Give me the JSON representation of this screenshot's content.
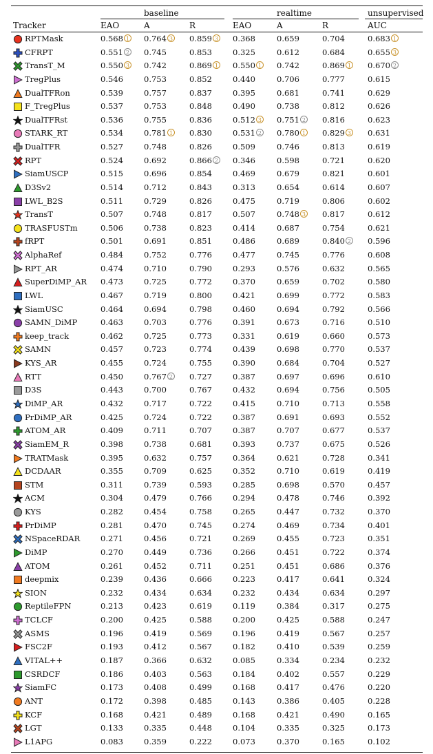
{
  "groups": {
    "baseline": "baseline",
    "realtime": "realtime",
    "unsupervised": "unsupervised"
  },
  "headers": {
    "tracker": "Tracker",
    "b_eao": "EAO",
    "b_a": "A",
    "b_r": "R",
    "r_eao": "EAO",
    "r_a": "A",
    "r_r": "R",
    "u_auc": "AUC"
  },
  "rank_glyphs": {
    "1": "1",
    "2": "2",
    "3": "3"
  },
  "rows": [
    {
      "name": "RPTMask",
      "marker": "circle",
      "color": "#e8321e",
      "v": [
        "0.568",
        "0.764",
        "0.859",
        "0.368",
        "0.659",
        "0.704",
        "0.683"
      ],
      "rk": [
        1,
        3,
        3,
        0,
        0,
        0,
        1
      ]
    },
    {
      "name": "CFRPT",
      "marker": "cross",
      "color": "#2b4fbf",
      "v": [
        "0.551",
        "0.745",
        "0.853",
        "0.325",
        "0.612",
        "0.684",
        "0.655"
      ],
      "rk": [
        2,
        0,
        0,
        0,
        0,
        0,
        3
      ]
    },
    {
      "name": "TransT_M",
      "marker": "xcross",
      "color": "#2e9a2e",
      "v": [
        "0.550",
        "0.742",
        "0.869",
        "0.550",
        "0.742",
        "0.869",
        "0.670"
      ],
      "rk": [
        3,
        0,
        1,
        1,
        0,
        1,
        2
      ]
    },
    {
      "name": "TregPlus",
      "marker": "tri-right",
      "color": "#cf6fd2",
      "v": [
        "0.546",
        "0.753",
        "0.852",
        "0.440",
        "0.706",
        "0.777",
        "0.615"
      ],
      "rk": [
        0,
        0,
        0,
        0,
        0,
        0,
        0
      ]
    },
    {
      "name": "DualTFRon",
      "marker": "tri-up",
      "color": "#f07a20",
      "v": [
        "0.539",
        "0.757",
        "0.837",
        "0.395",
        "0.681",
        "0.741",
        "0.629"
      ],
      "rk": [
        0,
        0,
        0,
        0,
        0,
        0,
        0
      ]
    },
    {
      "name": "F_TregPlus",
      "marker": "square",
      "color": "#f5e21c",
      "v": [
        "0.537",
        "0.753",
        "0.848",
        "0.490",
        "0.738",
        "0.812",
        "0.626"
      ],
      "rk": [
        0,
        0,
        0,
        0,
        0,
        0,
        0
      ]
    },
    {
      "name": "DualTFRst",
      "marker": "star",
      "color": "#111111",
      "v": [
        "0.536",
        "0.755",
        "0.836",
        "0.512",
        "0.751",
        "0.816",
        "0.623"
      ],
      "rk": [
        0,
        0,
        0,
        3,
        2,
        0,
        0
      ]
    },
    {
      "name": "STARK_RT",
      "marker": "circle",
      "color": "#e87ab8",
      "v": [
        "0.534",
        "0.781",
        "0.830",
        "0.531",
        "0.780",
        "0.829",
        "0.631"
      ],
      "rk": [
        0,
        1,
        0,
        2,
        1,
        3,
        0
      ]
    },
    {
      "name": "DualTFR",
      "marker": "cross",
      "color": "#9a9a9a",
      "v": [
        "0.527",
        "0.748",
        "0.826",
        "0.509",
        "0.746",
        "0.813",
        "0.619"
      ],
      "rk": [
        0,
        0,
        0,
        0,
        0,
        0,
        0
      ]
    },
    {
      "name": "RPT",
      "marker": "xcross",
      "color": "#d61f1f",
      "v": [
        "0.524",
        "0.692",
        "0.866",
        "0.346",
        "0.598",
        "0.721",
        "0.620"
      ],
      "rk": [
        0,
        0,
        2,
        0,
        0,
        0,
        0
      ]
    },
    {
      "name": "SiamUSCP",
      "marker": "tri-right",
      "color": "#2f6fc0",
      "v": [
        "0.515",
        "0.696",
        "0.854",
        "0.469",
        "0.679",
        "0.821",
        "0.601"
      ],
      "rk": [
        0,
        0,
        0,
        0,
        0,
        0,
        0
      ]
    },
    {
      "name": "D3Sv2",
      "marker": "tri-up",
      "color": "#2e9a2e",
      "v": [
        "0.514",
        "0.712",
        "0.843",
        "0.313",
        "0.654",
        "0.614",
        "0.607"
      ],
      "rk": [
        0,
        0,
        0,
        0,
        0,
        0,
        0
      ]
    },
    {
      "name": "LWL_B2S",
      "marker": "square",
      "color": "#8a3fa8",
      "v": [
        "0.511",
        "0.729",
        "0.826",
        "0.475",
        "0.719",
        "0.806",
        "0.602"
      ],
      "rk": [
        0,
        0,
        0,
        0,
        0,
        0,
        0
      ]
    },
    {
      "name": "TransT",
      "marker": "star",
      "color": "#e8321e",
      "v": [
        "0.507",
        "0.748",
        "0.817",
        "0.507",
        "0.748",
        "0.817",
        "0.612"
      ],
      "rk": [
        0,
        0,
        0,
        0,
        3,
        0,
        0
      ]
    },
    {
      "name": "TRASFUSTm",
      "marker": "circle",
      "color": "#f5e21c",
      "v": [
        "0.506",
        "0.738",
        "0.823",
        "0.414",
        "0.687",
        "0.754",
        "0.621"
      ],
      "rk": [
        0,
        0,
        0,
        0,
        0,
        0,
        0
      ]
    },
    {
      "name": "fRPT",
      "marker": "cross",
      "color": "#b5451f",
      "v": [
        "0.501",
        "0.691",
        "0.851",
        "0.486",
        "0.689",
        "0.840",
        "0.596"
      ],
      "rk": [
        0,
        0,
        0,
        0,
        0,
        2,
        0
      ]
    },
    {
      "name": "AlphaRef",
      "marker": "xcross",
      "color": "#cf6fd2",
      "v": [
        "0.484",
        "0.752",
        "0.776",
        "0.477",
        "0.745",
        "0.776",
        "0.608"
      ],
      "rk": [
        0,
        0,
        0,
        0,
        0,
        0,
        0
      ]
    },
    {
      "name": "RPT_AR",
      "marker": "tri-right",
      "color": "#9a9a9a",
      "v": [
        "0.474",
        "0.710",
        "0.790",
        "0.293",
        "0.576",
        "0.632",
        "0.565"
      ],
      "rk": [
        0,
        0,
        0,
        0,
        0,
        0,
        0
      ]
    },
    {
      "name": "SuperDiMP_AR",
      "marker": "tri-up",
      "color": "#d61f1f",
      "v": [
        "0.473",
        "0.725",
        "0.772",
        "0.370",
        "0.659",
        "0.702",
        "0.580"
      ],
      "rk": [
        0,
        0,
        0,
        0,
        0,
        0,
        0
      ]
    },
    {
      "name": "LWL",
      "marker": "square",
      "color": "#2f6fc0",
      "v": [
        "0.467",
        "0.719",
        "0.800",
        "0.421",
        "0.699",
        "0.772",
        "0.583"
      ],
      "rk": [
        0,
        0,
        0,
        0,
        0,
        0,
        0
      ]
    },
    {
      "name": "SiamUSC",
      "marker": "star",
      "color": "#111111",
      "v": [
        "0.464",
        "0.694",
        "0.798",
        "0.460",
        "0.694",
        "0.792",
        "0.566"
      ],
      "rk": [
        0,
        0,
        0,
        0,
        0,
        0,
        0
      ]
    },
    {
      "name": "SAMN_DiMP",
      "marker": "circle",
      "color": "#8a3fa8",
      "v": [
        "0.463",
        "0.703",
        "0.776",
        "0.391",
        "0.673",
        "0.716",
        "0.510"
      ],
      "rk": [
        0,
        0,
        0,
        0,
        0,
        0,
        0
      ]
    },
    {
      "name": "keep_track",
      "marker": "cross",
      "color": "#f07a20",
      "v": [
        "0.462",
        "0.725",
        "0.773",
        "0.331",
        "0.619",
        "0.660",
        "0.573"
      ],
      "rk": [
        0,
        0,
        0,
        0,
        0,
        0,
        0
      ]
    },
    {
      "name": "SAMN",
      "marker": "xcross",
      "color": "#f5e21c",
      "v": [
        "0.457",
        "0.723",
        "0.774",
        "0.439",
        "0.698",
        "0.770",
        "0.537"
      ],
      "rk": [
        0,
        0,
        0,
        0,
        0,
        0,
        0
      ]
    },
    {
      "name": "KYS_AR",
      "marker": "tri-right",
      "color": "#8a3a1f",
      "v": [
        "0.455",
        "0.724",
        "0.755",
        "0.390",
        "0.684",
        "0.704",
        "0.527"
      ],
      "rk": [
        0,
        0,
        0,
        0,
        0,
        0,
        0
      ]
    },
    {
      "name": "RTT",
      "marker": "tri-up",
      "color": "#e87ab8",
      "v": [
        "0.450",
        "0.767",
        "0.727",
        "0.387",
        "0.697",
        "0.696",
        "0.610"
      ],
      "rk": [
        0,
        2,
        0,
        0,
        0,
        0,
        0
      ]
    },
    {
      "name": "D3S",
      "marker": "square",
      "color": "#9a9a9a",
      "v": [
        "0.443",
        "0.700",
        "0.767",
        "0.432",
        "0.694",
        "0.756",
        "0.505"
      ],
      "rk": [
        0,
        0,
        0,
        0,
        0,
        0,
        0
      ]
    },
    {
      "name": "DiMP_AR",
      "marker": "star",
      "color": "#2f6fc0",
      "v": [
        "0.432",
        "0.717",
        "0.722",
        "0.415",
        "0.710",
        "0.713",
        "0.558"
      ],
      "rk": [
        0,
        0,
        0,
        0,
        0,
        0,
        0
      ]
    },
    {
      "name": "PrDiMP_AR",
      "marker": "circle",
      "color": "#2f6fc0",
      "v": [
        "0.425",
        "0.724",
        "0.722",
        "0.387",
        "0.691",
        "0.693",
        "0.552"
      ],
      "rk": [
        0,
        0,
        0,
        0,
        0,
        0,
        0
      ]
    },
    {
      "name": "ATOM_AR",
      "marker": "cross",
      "color": "#2e9a2e",
      "v": [
        "0.409",
        "0.711",
        "0.707",
        "0.387",
        "0.707",
        "0.677",
        "0.537"
      ],
      "rk": [
        0,
        0,
        0,
        0,
        0,
        0,
        0
      ]
    },
    {
      "name": "SiamEM_R",
      "marker": "xcross",
      "color": "#8a3fa8",
      "v": [
        "0.398",
        "0.738",
        "0.681",
        "0.393",
        "0.737",
        "0.675",
        "0.526"
      ],
      "rk": [
        0,
        0,
        0,
        0,
        0,
        0,
        0
      ]
    },
    {
      "name": "TRATMask",
      "marker": "tri-right",
      "color": "#f07a20",
      "v": [
        "0.395",
        "0.632",
        "0.757",
        "0.364",
        "0.621",
        "0.728",
        "0.341"
      ],
      "rk": [
        0,
        0,
        0,
        0,
        0,
        0,
        0
      ]
    },
    {
      "name": "DCDAAR",
      "marker": "tri-up",
      "color": "#f5e21c",
      "v": [
        "0.355",
        "0.709",
        "0.625",
        "0.352",
        "0.710",
        "0.619",
        "0.419"
      ],
      "rk": [
        0,
        0,
        0,
        0,
        0,
        0,
        0
      ]
    },
    {
      "name": "STM",
      "marker": "square",
      "color": "#b5451f",
      "v": [
        "0.311",
        "0.739",
        "0.593",
        "0.285",
        "0.698",
        "0.570",
        "0.457"
      ],
      "rk": [
        0,
        0,
        0,
        0,
        0,
        0,
        0
      ]
    },
    {
      "name": "ACM",
      "marker": "star",
      "color": "#111111",
      "v": [
        "0.304",
        "0.479",
        "0.766",
        "0.294",
        "0.478",
        "0.746",
        "0.392"
      ],
      "rk": [
        0,
        0,
        0,
        0,
        0,
        0,
        0
      ]
    },
    {
      "name": "KYS",
      "marker": "circle",
      "color": "#9a9a9a",
      "v": [
        "0.282",
        "0.454",
        "0.758",
        "0.265",
        "0.447",
        "0.732",
        "0.370"
      ],
      "rk": [
        0,
        0,
        0,
        0,
        0,
        0,
        0
      ]
    },
    {
      "name": "PrDiMP",
      "marker": "cross",
      "color": "#d61f1f",
      "v": [
        "0.281",
        "0.470",
        "0.745",
        "0.274",
        "0.469",
        "0.734",
        "0.401"
      ],
      "rk": [
        0,
        0,
        0,
        0,
        0,
        0,
        0
      ]
    },
    {
      "name": "NSpaceRDAR",
      "marker": "xcross",
      "color": "#2f6fc0",
      "v": [
        "0.271",
        "0.456",
        "0.721",
        "0.269",
        "0.455",
        "0.723",
        "0.351"
      ],
      "rk": [
        0,
        0,
        0,
        0,
        0,
        0,
        0
      ]
    },
    {
      "name": "DiMP",
      "marker": "tri-right",
      "color": "#2e9a2e",
      "v": [
        "0.270",
        "0.449",
        "0.736",
        "0.266",
        "0.451",
        "0.722",
        "0.374"
      ],
      "rk": [
        0,
        0,
        0,
        0,
        0,
        0,
        0
      ]
    },
    {
      "name": "ATOM",
      "marker": "tri-up",
      "color": "#8a3fa8",
      "v": [
        "0.261",
        "0.452",
        "0.711",
        "0.251",
        "0.451",
        "0.686",
        "0.376"
      ],
      "rk": [
        0,
        0,
        0,
        0,
        0,
        0,
        0
      ]
    },
    {
      "name": "deepmix",
      "marker": "square",
      "color": "#f07a20",
      "v": [
        "0.239",
        "0.436",
        "0.666",
        "0.223",
        "0.417",
        "0.641",
        "0.324"
      ],
      "rk": [
        0,
        0,
        0,
        0,
        0,
        0,
        0
      ]
    },
    {
      "name": "SION",
      "marker": "star",
      "color": "#f5e21c",
      "v": [
        "0.232",
        "0.434",
        "0.634",
        "0.232",
        "0.434",
        "0.634",
        "0.297"
      ],
      "rk": [
        0,
        0,
        0,
        0,
        0,
        0,
        0
      ]
    },
    {
      "name": "ReptileFPN",
      "marker": "circle",
      "color": "#2e9a2e",
      "v": [
        "0.213",
        "0.423",
        "0.619",
        "0.119",
        "0.384",
        "0.317",
        "0.275"
      ],
      "rk": [
        0,
        0,
        0,
        0,
        0,
        0,
        0
      ]
    },
    {
      "name": "TCLCF",
      "marker": "cross",
      "color": "#cf6fd2",
      "v": [
        "0.200",
        "0.425",
        "0.588",
        "0.200",
        "0.425",
        "0.588",
        "0.247"
      ],
      "rk": [
        0,
        0,
        0,
        0,
        0,
        0,
        0
      ]
    },
    {
      "name": "ASMS",
      "marker": "xcross",
      "color": "#9a9a9a",
      "v": [
        "0.196",
        "0.419",
        "0.569",
        "0.196",
        "0.419",
        "0.567",
        "0.257"
      ],
      "rk": [
        0,
        0,
        0,
        0,
        0,
        0,
        0
      ]
    },
    {
      "name": "FSC2F",
      "marker": "tri-right",
      "color": "#d61f1f",
      "v": [
        "0.193",
        "0.412",
        "0.567",
        "0.182",
        "0.410",
        "0.539",
        "0.259"
      ],
      "rk": [
        0,
        0,
        0,
        0,
        0,
        0,
        0
      ]
    },
    {
      "name": "VITAL++",
      "marker": "tri-up",
      "color": "#2f6fc0",
      "v": [
        "0.187",
        "0.366",
        "0.632",
        "0.085",
        "0.334",
        "0.234",
        "0.232"
      ],
      "rk": [
        0,
        0,
        0,
        0,
        0,
        0,
        0
      ]
    },
    {
      "name": "CSRDCF",
      "marker": "square",
      "color": "#2e9a2e",
      "v": [
        "0.186",
        "0.403",
        "0.563",
        "0.184",
        "0.402",
        "0.557",
        "0.229"
      ],
      "rk": [
        0,
        0,
        0,
        0,
        0,
        0,
        0
      ]
    },
    {
      "name": "SiamFC",
      "marker": "star",
      "color": "#8a3fa8",
      "v": [
        "0.173",
        "0.408",
        "0.499",
        "0.168",
        "0.417",
        "0.476",
        "0.220"
      ],
      "rk": [
        0,
        0,
        0,
        0,
        0,
        0,
        0
      ]
    },
    {
      "name": "ANT",
      "marker": "circle",
      "color": "#f07a20",
      "v": [
        "0.172",
        "0.398",
        "0.485",
        "0.143",
        "0.386",
        "0.405",
        "0.228"
      ],
      "rk": [
        0,
        0,
        0,
        0,
        0,
        0,
        0
      ]
    },
    {
      "name": "KCF",
      "marker": "cross",
      "color": "#f5e21c",
      "v": [
        "0.168",
        "0.421",
        "0.489",
        "0.168",
        "0.421",
        "0.490",
        "0.165"
      ],
      "rk": [
        0,
        0,
        0,
        0,
        0,
        0,
        0
      ]
    },
    {
      "name": "LGT",
      "marker": "xcross",
      "color": "#b5451f",
      "v": [
        "0.133",
        "0.335",
        "0.448",
        "0.104",
        "0.335",
        "0.325",
        "0.173"
      ],
      "rk": [
        0,
        0,
        0,
        0,
        0,
        0,
        0
      ]
    },
    {
      "name": "L1APG",
      "marker": "tri-right",
      "color": "#e87ab8",
      "v": [
        "0.083",
        "0.359",
        "0.222",
        "0.073",
        "0.370",
        "0.165",
        "0.102"
      ],
      "rk": [
        0,
        0,
        0,
        0,
        0,
        0,
        0
      ]
    }
  ]
}
